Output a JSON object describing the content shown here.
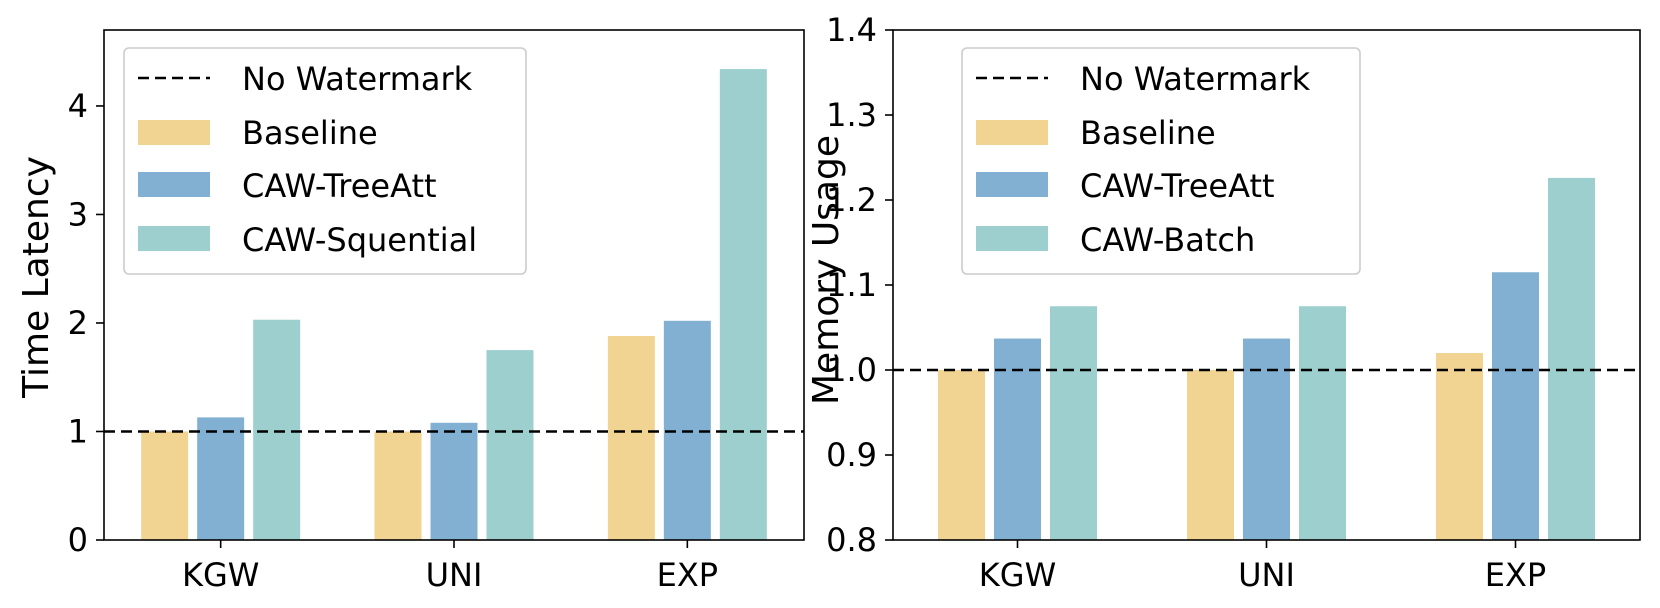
{
  "chart_data": [
    {
      "type": "bar",
      "title": "",
      "xlabel": "",
      "ylabel": "Time Latency",
      "categories": [
        "KGW",
        "UNI",
        "EXP"
      ],
      "ylim": [
        0,
        4.7
      ],
      "yticks": [
        0,
        1,
        2,
        3,
        4
      ],
      "ytick_labels": [
        "0",
        "1",
        "2",
        "3",
        "4"
      ],
      "reference_line": {
        "name": "No Watermark",
        "value": 1.0,
        "style": "dashed"
      },
      "series": [
        {
          "name": "Baseline",
          "color": "#f2d492",
          "values": [
            1.0,
            1.0,
            1.88
          ]
        },
        {
          "name": "CAW-TreeAtt",
          "color": "#82b0d2",
          "values": [
            1.13,
            1.08,
            2.02
          ]
        },
        {
          "name": "CAW-Squential",
          "color": "#9ccfce",
          "values": [
            2.03,
            1.75,
            4.34
          ]
        }
      ],
      "legend": {
        "position": "top-left",
        "entries": [
          "No Watermark",
          "Baseline",
          "CAW-TreeAtt",
          "CAW-Squential"
        ]
      }
    },
    {
      "type": "bar",
      "title": "",
      "xlabel": "",
      "ylabel": "Memory Usage",
      "categories": [
        "KGW",
        "UNI",
        "EXP"
      ],
      "ylim": [
        0.8,
        1.4
      ],
      "yticks": [
        0.8,
        0.9,
        1.0,
        1.1,
        1.2,
        1.3,
        1.4
      ],
      "ytick_labels": [
        "0.8",
        "0.9",
        "1.0",
        "1.1",
        "1.2",
        "1.3",
        "1.4"
      ],
      "reference_line": {
        "name": "No Watermark",
        "value": 1.0,
        "style": "dashed"
      },
      "series": [
        {
          "name": "Baseline",
          "color": "#f2d492",
          "values": [
            1.0,
            1.0,
            1.02
          ]
        },
        {
          "name": "CAW-TreeAtt",
          "color": "#82b0d2",
          "values": [
            1.037,
            1.037,
            1.115
          ]
        },
        {
          "name": "CAW-Batch",
          "color": "#9ccfce",
          "values": [
            1.075,
            1.075,
            1.226
          ]
        }
      ],
      "legend": {
        "position": "top-left",
        "entries": [
          "No Watermark",
          "Baseline",
          "CAW-TreeAtt",
          "CAW-Batch"
        ]
      }
    }
  ]
}
